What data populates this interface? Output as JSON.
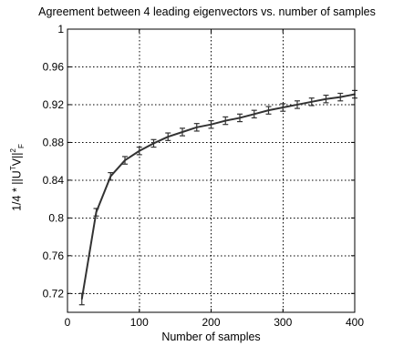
{
  "chart_data": {
    "type": "line",
    "title": "Agreement between 4 leading eigenvectors vs. number of samples",
    "xlabel": "Number of samples",
    "ylabel": {
      "prefix": "1/4 * ||U",
      "sup1": "T",
      "mid": "V||",
      "sup2": "2",
      "sub": "F"
    },
    "xlim": [
      0,
      400
    ],
    "ylim": [
      0.7,
      1.0
    ],
    "xticks": [
      0,
      100,
      200,
      300,
      400
    ],
    "xtick_labels": [
      "0",
      "100",
      "200",
      "300",
      "400"
    ],
    "yticks": [
      0.72,
      0.76,
      0.8,
      0.84,
      0.88,
      0.92,
      0.96,
      1.0
    ],
    "ytick_labels": [
      "0.72",
      "0.76",
      "0.8",
      "0.84",
      "0.88",
      "0.92",
      "0.96",
      "1"
    ],
    "grid": true,
    "error_bars": true,
    "series": [
      {
        "x": [
          20,
          40,
          60,
          80,
          100,
          120,
          140,
          160,
          180,
          200,
          220,
          240,
          260,
          280,
          300,
          320,
          340,
          360,
          380,
          400
        ],
        "y": [
          0.714,
          0.806,
          0.844,
          0.861,
          0.871,
          0.879,
          0.886,
          0.891,
          0.896,
          0.899,
          0.903,
          0.906,
          0.91,
          0.914,
          0.917,
          0.92,
          0.923,
          0.926,
          0.928,
          0.931
        ],
        "err": [
          0.006,
          0.004,
          0.004,
          0.004,
          0.004,
          0.004,
          0.004,
          0.004,
          0.004,
          0.004,
          0.004,
          0.004,
          0.004,
          0.004,
          0.004,
          0.004,
          0.004,
          0.004,
          0.004,
          0.004
        ]
      }
    ],
    "colors": {
      "line": "#333333",
      "grid": "#000000"
    }
  }
}
